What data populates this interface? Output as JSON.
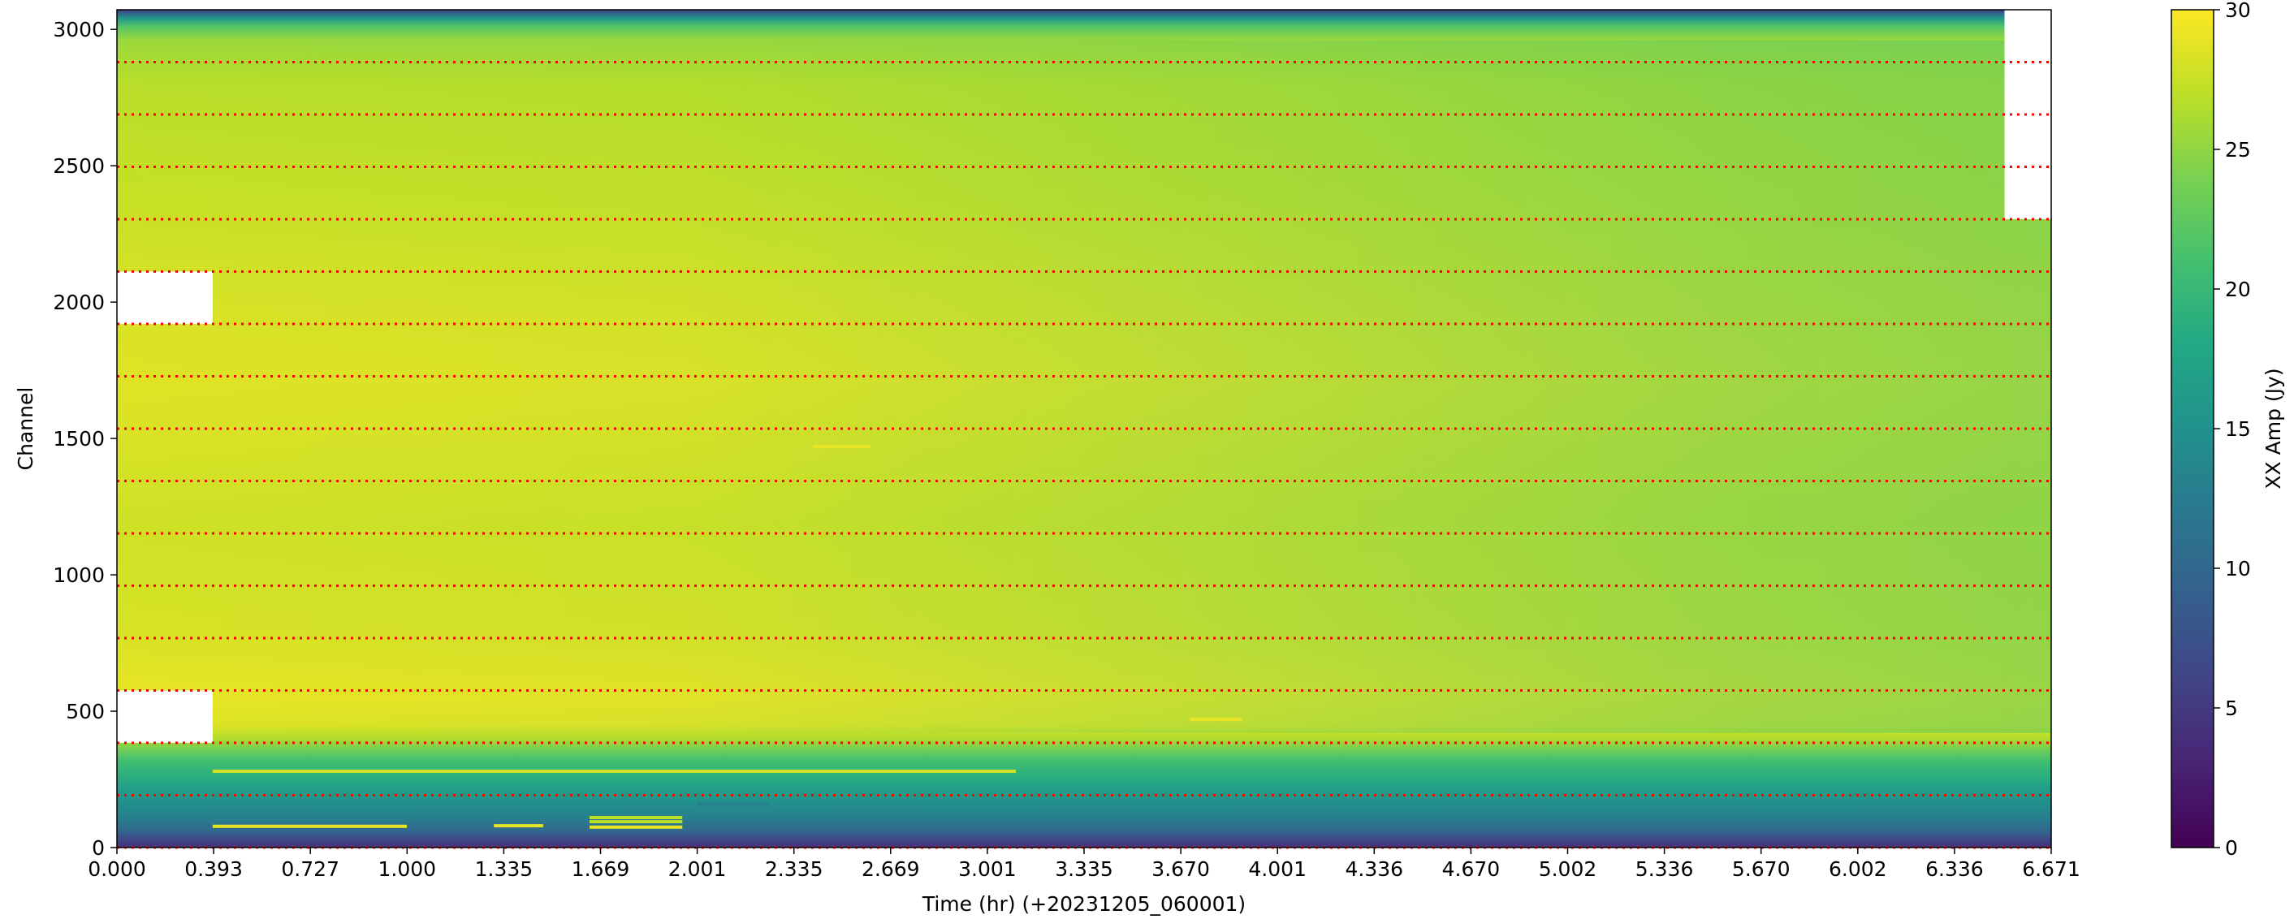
{
  "chart_data": {
    "type": "heatmap",
    "title": "",
    "xlabel": "Time (hr) (+20231205_060001)",
    "ylabel": "Channel",
    "xlim": [
      0.0,
      6.671
    ],
    "ylim": [
      0,
      3072
    ],
    "x_tick_labels": [
      "0.000",
      "0.393",
      "0.727",
      "1.000",
      "1.335",
      "1.669",
      "2.001",
      "2.335",
      "2.669",
      "3.001",
      "3.335",
      "3.670",
      "4.001",
      "4.336",
      "4.670",
      "5.002",
      "5.336",
      "5.670",
      "6.002",
      "6.336",
      "6.671"
    ],
    "y_ticks": [
      0,
      500,
      1000,
      1500,
      2000,
      2500,
      3000
    ],
    "y_tick_labels": [
      "0",
      "500",
      "1000",
      "1500",
      "2000",
      "2500",
      "3000"
    ],
    "colorbar": {
      "label": "XX Amp (Jy)",
      "colormap": "viridis",
      "range": [
        0,
        30
      ],
      "ticks": [
        0,
        5,
        10,
        15,
        20,
        25,
        30
      ],
      "tick_labels": [
        "0",
        "5",
        "10",
        "15",
        "20",
        "25",
        "30"
      ]
    },
    "amplitude_profile_by_channel": [
      {
        "channel": 0,
        "amp": 4
      },
      {
        "channel": 25,
        "amp": 6
      },
      {
        "channel": 60,
        "amp": 10
      },
      {
        "channel": 110,
        "amp": 13
      },
      {
        "channel": 170,
        "amp": 15
      },
      {
        "channel": 220,
        "amp": 17
      },
      {
        "channel": 270,
        "amp": 19
      },
      {
        "channel": 320,
        "amp": 21
      },
      {
        "channel": 360,
        "amp": 23.5
      },
      {
        "channel": 400,
        "amp": 26.5
      },
      {
        "channel": 450,
        "amp": 28.5
      },
      {
        "channel": 550,
        "amp": 29
      },
      {
        "channel": 800,
        "amp": 28.2
      },
      {
        "channel": 1200,
        "amp": 27.8
      },
      {
        "channel": 1700,
        "amp": 28.6
      },
      {
        "channel": 2000,
        "amp": 28.2
      },
      {
        "channel": 2400,
        "amp": 27.4
      },
      {
        "channel": 2800,
        "amp": 26.8
      },
      {
        "channel": 2960,
        "amp": 25.5
      },
      {
        "channel": 3010,
        "amp": 22
      },
      {
        "channel": 3040,
        "amp": 16
      },
      {
        "channel": 3060,
        "amp": 9
      },
      {
        "channel": 3072,
        "amp": 5
      }
    ],
    "amplitude_change_over_time": [
      {
        "time": 0.0,
        "delta": 0
      },
      {
        "time": 2.0,
        "delta": -0.3
      },
      {
        "time": 4.0,
        "delta": -1.5
      },
      {
        "time": 5.5,
        "delta": -2.5
      },
      {
        "time": 6.671,
        "delta": -3.0
      }
    ],
    "flagged_regions": [
      {
        "time_range": [
          0.0,
          0.33
        ],
        "channel_range": [
          384,
          576
        ]
      },
      {
        "time_range": [
          0.0,
          0.33
        ],
        "channel_range": [
          1920,
          2112
        ]
      },
      {
        "time_range": [
          6.51,
          6.671
        ],
        "channel_range": [
          2304,
          3072
        ]
      }
    ],
    "rfi_streaks": [
      {
        "time_range": [
          0.33,
          3.1
        ],
        "channel": 280,
        "amp": 28
      },
      {
        "time_range": [
          0.33,
          1.0
        ],
        "channel": 78,
        "amp": 29
      },
      {
        "time_range": [
          1.3,
          1.47
        ],
        "channel": 80,
        "amp": 29
      },
      {
        "time_range": [
          1.63,
          1.95
        ],
        "channel": 75,
        "amp": 29
      },
      {
        "time_range": [
          1.63,
          1.95
        ],
        "channel": 95,
        "amp": 27
      },
      {
        "time_range": [
          1.63,
          1.95
        ],
        "channel": 110,
        "amp": 27
      },
      {
        "time_range": [
          2.4,
          2.6
        ],
        "channel": 1470,
        "amp": 29
      },
      {
        "time_range": [
          3.7,
          3.88
        ],
        "channel": 470,
        "amp": 29
      },
      {
        "time_range": [
          2.0,
          2.25
        ],
        "channel": 160,
        "amp": 13
      }
    ],
    "subband_boundaries": [
      0,
      192,
      384,
      576,
      768,
      960,
      1152,
      1344,
      1536,
      1728,
      1920,
      2112,
      2304,
      2496,
      2688,
      2880
    ],
    "subband_boundary_color": "#ff0000"
  }
}
